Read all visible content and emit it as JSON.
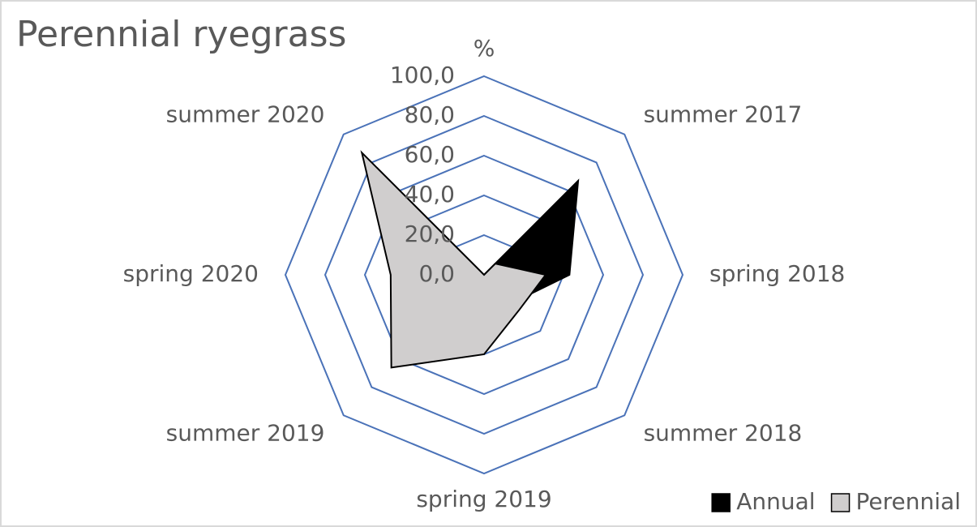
{
  "chart_data": {
    "type": "radar",
    "title": "Perennial ryegrass",
    "categories": [
      "%",
      "summer 2017",
      "spring 2018",
      "summer 2018",
      "spring 2019",
      "summer 2019",
      "spring 2020",
      "summer 2020"
    ],
    "series": [
      {
        "name": "Annual",
        "color": "#000000",
        "values": [
          0,
          67,
          43,
          20,
          30,
          50,
          40,
          75
        ]
      },
      {
        "name": "Perennial",
        "color": "#d0cece",
        "values": [
          0,
          8,
          31,
          25,
          40,
          66,
          47,
          87
        ]
      }
    ],
    "ylim": [
      0,
      100
    ],
    "yticks": [
      {
        "value": 0,
        "label": "0,0"
      },
      {
        "value": 20,
        "label": "20,0"
      },
      {
        "value": 40,
        "label": "40,0"
      },
      {
        "value": 60,
        "label": "60,0"
      },
      {
        "value": 80,
        "label": "80,0"
      },
      {
        "value": 100,
        "label": "100,0"
      }
    ],
    "grid": true,
    "legend": "bottom-right",
    "grid_color": "#4a72b8"
  }
}
